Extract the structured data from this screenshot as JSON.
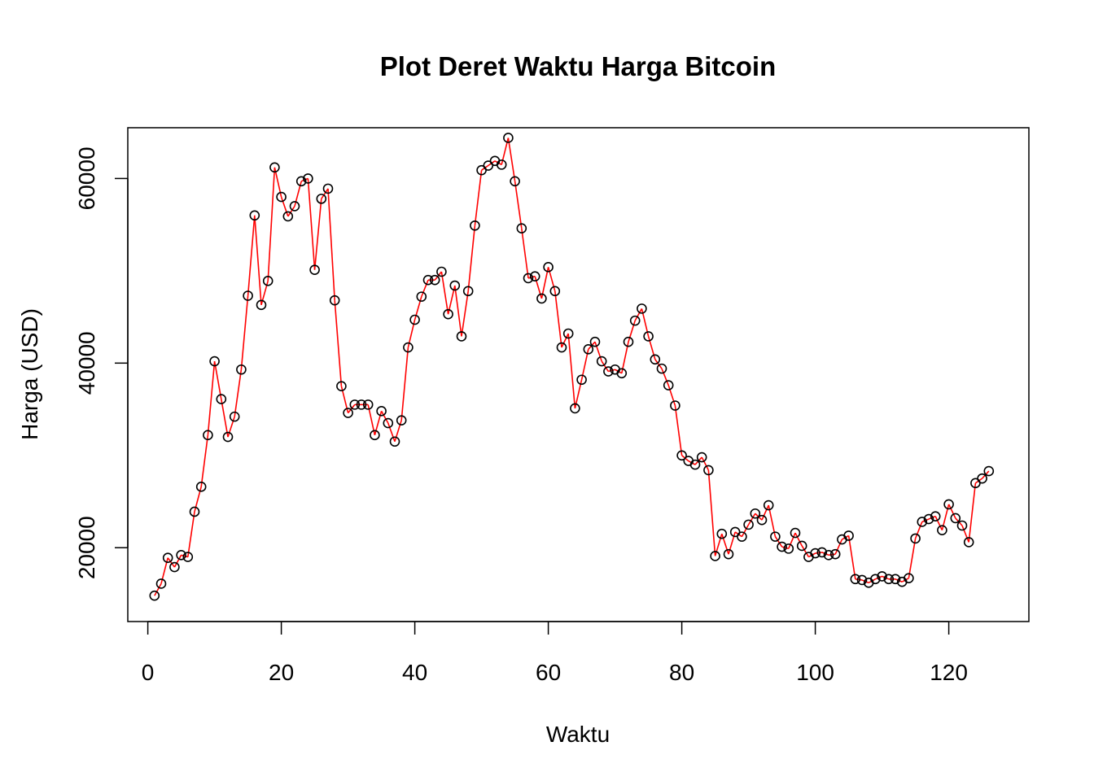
{
  "chart_data": {
    "type": "line",
    "title": "Plot Deret Waktu Harga Bitcoin",
    "xlabel": "Waktu",
    "ylabel": "Harga (USD)",
    "xlim": [
      -3,
      132
    ],
    "ylim": [
      12000,
      65500
    ],
    "x_ticks": [
      "0",
      "20",
      "40",
      "60",
      "80",
      "100",
      "120"
    ],
    "y_ticks": [
      "20000",
      "40000",
      "60000"
    ],
    "grid": false,
    "legend": "none",
    "line_color": "#ff0000",
    "point_color": "#000000",
    "point_style": "open-circle",
    "series": [
      {
        "x": [
          1,
          2,
          3,
          4,
          5,
          6,
          7,
          8,
          9,
          10,
          11,
          12,
          13,
          14,
          15,
          16,
          17,
          18,
          19,
          20,
          21,
          22,
          23,
          24,
          25,
          26,
          27,
          28,
          29,
          30,
          31,
          32,
          33,
          34,
          35,
          36,
          37,
          38,
          39,
          40,
          41,
          42,
          43,
          44,
          45,
          46,
          47,
          48,
          49,
          50,
          51,
          52,
          53,
          54,
          55,
          56,
          57,
          58,
          59,
          60,
          61,
          62,
          63,
          64,
          65,
          66,
          67,
          68,
          69,
          70,
          71,
          72,
          73,
          74,
          75,
          76,
          77,
          78,
          79,
          80,
          81,
          82,
          83,
          84,
          85,
          86,
          87,
          88,
          89,
          90,
          91,
          92,
          93,
          94,
          95,
          96,
          97,
          98,
          99,
          100,
          101,
          102,
          103,
          104,
          105,
          106,
          107,
          108,
          109,
          110,
          111,
          112,
          113,
          114,
          115,
          116,
          117,
          118,
          119,
          120,
          121,
          122,
          123,
          124,
          125,
          126
        ],
        "y": [
          14800,
          16100,
          18900,
          17900,
          19200,
          19000,
          23900,
          26600,
          32200,
          40200,
          36100,
          32000,
          34200,
          39300,
          47300,
          56000,
          46300,
          48900,
          61200,
          58000,
          55900,
          57000,
          59700,
          60000,
          50100,
          57800,
          58900,
          46800,
          37500,
          34600,
          35500,
          35500,
          35500,
          32200,
          34800,
          33500,
          31500,
          33800,
          41700,
          44700,
          47200,
          49000,
          49000,
          49900,
          45300,
          48400,
          42900,
          47800,
          54900,
          60900,
          61400,
          61900,
          61500,
          64400,
          59700,
          54600,
          49200,
          49400,
          47000,
          50400,
          47800,
          41700,
          43200,
          35100,
          38200,
          41500,
          42300,
          40200,
          39100,
          39300,
          38900,
          42300,
          44600,
          45900,
          42900,
          40400,
          39400,
          37600,
          35400,
          30000,
          29400,
          29000,
          29800,
          28400,
          19100,
          21500,
          19300,
          21700,
          21200,
          22500,
          23700,
          23000,
          24600,
          21200,
          20100,
          19900,
          21600,
          20200,
          19000,
          19400,
          19500,
          19200,
          19300,
          20900,
          21300,
          16600,
          16500,
          16200,
          16600,
          16900,
          16600,
          16600,
          16300,
          16700,
          21000,
          22800,
          23100,
          23400,
          21900,
          24700,
          23200,
          22400,
          20600,
          27000,
          27500,
          28300
        ]
      }
    ]
  }
}
